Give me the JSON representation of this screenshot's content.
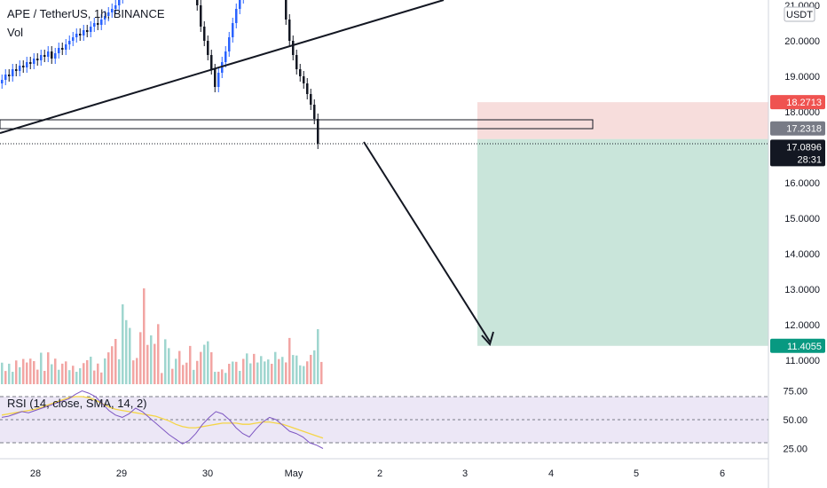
{
  "chart_data": {
    "type": "candlestick",
    "symbol_title": "APE / TetherUS, 1h, BINANCE",
    "volume_label": "Vol",
    "currency_badge": "USDT",
    "price_axis_ticks": [
      "21.0000",
      "20.0000",
      "19.0000",
      "18.0000",
      "16.0000",
      "15.0000",
      "14.0000",
      "13.0000",
      "12.0000",
      "11.0000"
    ],
    "time_axis_ticks": [
      "28",
      "29",
      "30",
      "May",
      "2",
      "3",
      "4",
      "5",
      "6"
    ],
    "price_tags": [
      {
        "value": "18.2713",
        "color": "#ef5350",
        "text_color": "#ffffff"
      },
      {
        "value": "17.2318",
        "color": "#787b86",
        "text_color": "#ffffff"
      },
      {
        "value": "17.0896",
        "color": "#131722",
        "text_color": "#ffffff"
      },
      {
        "value": "11.4055",
        "color": "#089981",
        "text_color": "#ffffff"
      }
    ],
    "countdown": "28:31",
    "position": {
      "type": "short",
      "entry": 17.2318,
      "stop": 18.2713,
      "target": 11.4055
    },
    "rsi": {
      "label": "RSI (14, close, SMA, 14, 2)",
      "ticks": [
        "75.00",
        "50.00",
        "25.00"
      ],
      "levels": [
        70,
        50,
        30
      ],
      "values": [
        52,
        53,
        55,
        57,
        56,
        58,
        60,
        62,
        64,
        66,
        68,
        72,
        75,
        73,
        70,
        64,
        58,
        54,
        52,
        55,
        60,
        57,
        52,
        47,
        42,
        37,
        33,
        29,
        32,
        38,
        46,
        52,
        57,
        55,
        50,
        43,
        38,
        35,
        42,
        48,
        52,
        50,
        45,
        40,
        38,
        35,
        30,
        28,
        25
      ],
      "ma": [
        54,
        55,
        56,
        57,
        58,
        59,
        61,
        63,
        65,
        67,
        69,
        70,
        70,
        69,
        67,
        64,
        61,
        59,
        58,
        57,
        56,
        55,
        54,
        53,
        51,
        49,
        46,
        44,
        43,
        43,
        44,
        45,
        46,
        47,
        47,
        47,
        46,
        46,
        47,
        48,
        48,
        47,
        46,
        44,
        42,
        40,
        38,
        36,
        34
      ]
    }
  }
}
